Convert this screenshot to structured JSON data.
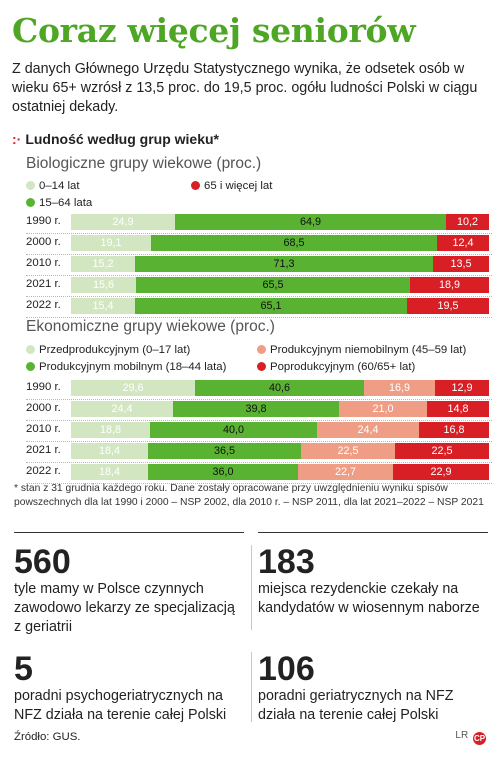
{
  "title": "Coraz więcej seniorów",
  "lead": "Z danych Głównego Urzędu Statystycznego wynika, że odsetek osób w wieku 65+ wzrósł z 13,5 proc. do 19,5 proc. ogółu ludności Polski w ciągu ostatniej dekady.",
  "subhead_mark": ":·",
  "subhead": "Ludność według grup wieku*",
  "colors": {
    "light_green": "#d3e6c2",
    "green": "#5ab233",
    "salmon": "#ef9d84",
    "red": "#d81f26"
  },
  "chart_data": [
    {
      "type": "bar",
      "stacked": true,
      "orientation": "horizontal",
      "title": "Biologiczne grupy wiekowe (proc.)",
      "categories": [
        "1990 r.",
        "2000 r.",
        "2010 r.",
        "2021 r.",
        "2022 r."
      ],
      "series": [
        {
          "name": "0–14 lat",
          "color": "#d3e6c2",
          "values": [
            24.9,
            19.1,
            15.2,
            15.6,
            15.4
          ],
          "labels": [
            "24,9",
            "19,1",
            "15,2",
            "15,6",
            "15,4"
          ]
        },
        {
          "name": "15–64 lata",
          "color": "#5ab233",
          "values": [
            64.9,
            68.5,
            71.3,
            65.5,
            65.1
          ],
          "labels": [
            "64,9",
            "68,5",
            "71,3",
            "65,5",
            "65,1"
          ]
        },
        {
          "name": "65 i więcej lat",
          "color": "#d81f26",
          "values": [
            10.2,
            12.4,
            13.5,
            18.9,
            19.5
          ],
          "labels": [
            "10,2",
            "12,4",
            "13,5",
            "18,9",
            "19,5"
          ]
        }
      ],
      "xlim": [
        0,
        100
      ]
    },
    {
      "type": "bar",
      "stacked": true,
      "orientation": "horizontal",
      "title": "Ekonomiczne grupy wiekowe (proc.)",
      "categories": [
        "1990 r.",
        "2000 r.",
        "2010 r.",
        "2021 r.",
        "2022 r."
      ],
      "series": [
        {
          "name": "Przedprodukcyjnym (0–17 lat)",
          "color": "#d3e6c2",
          "values": [
            29.6,
            24.4,
            18.8,
            18.4,
            18.4
          ],
          "labels": [
            "29,6",
            "24,4",
            "18,8",
            "18,4",
            "18,4"
          ]
        },
        {
          "name": "Produkcyjnym mobilnym (18–44 lata)",
          "color": "#5ab233",
          "values": [
            40.6,
            39.8,
            40.0,
            36.5,
            36.0
          ],
          "labels": [
            "40,6",
            "39,8",
            "40,0",
            "36,5",
            "36,0"
          ]
        },
        {
          "name": "Produkcyjnym niemobilnym (45–59 lat)",
          "color": "#ef9d84",
          "values": [
            16.9,
            21.0,
            24.4,
            22.5,
            22.7
          ],
          "labels": [
            "16,9",
            "21,0",
            "24,4",
            "22,5",
            "22,7"
          ]
        },
        {
          "name": "Poprodukcyjnym (60/65+ lat)",
          "color": "#d81f26",
          "values": [
            12.9,
            14.8,
            16.8,
            22.5,
            22.9
          ],
          "labels": [
            "12,9",
            "14,8",
            "16,8",
            "22,5",
            "22,9"
          ]
        }
      ],
      "xlim": [
        0,
        100
      ]
    }
  ],
  "footnote": "* stan z 31 grudnia każdego roku. Dane zostały opracowane przy uwzględnieniu wyniku spisów powszechnych dla lat 1990 i 2000 – NSP 2002, dla 2010 r. – NSP 2011, dla lat 2021–2022 – NSP 2021",
  "stats": [
    {
      "number": "560",
      "text": "tyle mamy w Polsce czynnych zawodowo lekarzy ze specjalizacją z geriatrii"
    },
    {
      "number": "183",
      "text": "miejsca rezydenckie czekały na kandydatów w wiosennym naborze"
    },
    {
      "number": "5",
      "text": "poradni psychogeriatrycznych na NFZ działa na terenie całej Polski"
    },
    {
      "number": "106",
      "text": "poradni geriatrycznych na NFZ działa na terenie całej Polski"
    }
  ],
  "source": "Źródło: GUS.",
  "credit_initials": "LR",
  "credit_logo": "CP"
}
